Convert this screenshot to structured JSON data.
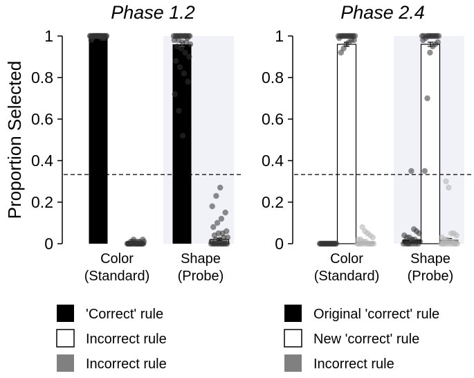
{
  "chart_data": [
    {
      "type": "bar",
      "title": "Phase 1.2",
      "ylabel": "Proportion Selected",
      "ylim": [
        0,
        1
      ],
      "yticks": [
        0,
        0.2,
        0.4,
        0.6,
        0.8,
        1
      ],
      "ytick_labels": [
        "0",
        "0.2",
        "0.4",
        "0.6",
        "0.8",
        "1"
      ],
      "chance_line": 0.333,
      "categories": [
        "Color (Standard)",
        "Shape (Probe)"
      ],
      "category_lines": [
        [
          "Color",
          "(Standard)"
        ],
        [
          "Shape",
          "(Probe)"
        ]
      ],
      "shaded_category": 1,
      "series": [
        {
          "legend_index": 0,
          "values": [
            1.0,
            0.96
          ],
          "errors": [
            0.0,
            0.01
          ]
        },
        {
          "legend_index": 1,
          "values": [
            0.0,
            0.02
          ],
          "errors": [
            0.0,
            0.005
          ]
        }
      ],
      "points": [
        {
          "category": 0,
          "series": 0,
          "values": [
            1,
            1,
            1,
            1,
            1,
            1,
            1,
            1,
            1,
            1,
            1,
            1,
            1,
            1,
            1,
            1,
            1,
            1,
            1,
            1,
            0.99,
            0.99,
            0.99,
            1,
            1,
            1,
            0.98,
            1,
            1,
            0.99
          ]
        },
        {
          "category": 0,
          "series": 1,
          "values": [
            0,
            0,
            0,
            0,
            0,
            0,
            0,
            0,
            0,
            0,
            0,
            0,
            0,
            0,
            0,
            0,
            0.01,
            0.01,
            0.01,
            0.01,
            0,
            0.02,
            0,
            0.02,
            0.01,
            0,
            0,
            0.01,
            0,
            0
          ]
        },
        {
          "category": 1,
          "series": 0,
          "values": [
            1,
            1,
            1,
            1,
            1,
            1,
            1,
            1,
            1,
            1,
            1,
            1,
            0.99,
            0.98,
            0.98,
            0.97,
            0.97,
            0.96,
            0.95,
            0.94,
            0.92,
            0.9,
            0.88,
            0.85,
            0.82,
            0.78,
            0.72,
            0.64,
            0.52,
            1
          ]
        },
        {
          "category": 1,
          "series": 1,
          "values": [
            0,
            0,
            0,
            0,
            0,
            0,
            0,
            0,
            0,
            0,
            0,
            0,
            0.01,
            0.01,
            0.02,
            0.02,
            0.03,
            0.03,
            0.04,
            0.05,
            0.05,
            0.06,
            0.08,
            0.1,
            0.12,
            0.15,
            0.18,
            0.23,
            0.27,
            0
          ]
        }
      ]
    },
    {
      "type": "bar",
      "title": "Phase 2.4",
      "ylabel": "",
      "ylim": [
        0,
        1
      ],
      "yticks": [
        0,
        0.2,
        0.4,
        0.6,
        0.8,
        1
      ],
      "ytick_labels": [
        "0",
        "0.2",
        "0.4",
        "0.6",
        "0.8",
        "1"
      ],
      "chance_line": 0.333,
      "categories": [
        "Color (Standard)",
        "Shape (Probe)"
      ],
      "category_lines": [
        [
          "Color",
          "(Standard)"
        ],
        [
          "Shape",
          "(Probe)"
        ]
      ],
      "shaded_category": 1,
      "series": [
        {
          "legend_index": 0,
          "values": [
            0.0,
            0.02
          ],
          "errors": [
            0.0,
            0.005
          ]
        },
        {
          "legend_index": 1,
          "values": [
            0.96,
            0.96
          ],
          "errors": [
            0.01,
            0.01
          ]
        },
        {
          "legend_index": 2,
          "values": [
            0.01,
            0.02
          ],
          "errors": [
            0.0,
            0.005
          ]
        }
      ],
      "points": [
        {
          "category": 0,
          "series": 0,
          "values": [
            0,
            0,
            0,
            0,
            0,
            0,
            0,
            0,
            0,
            0,
            0,
            0,
            0,
            0,
            0,
            0,
            0,
            0,
            0,
            0
          ]
        },
        {
          "category": 0,
          "series": 1,
          "values": [
            1,
            1,
            1,
            1,
            1,
            1,
            1,
            1,
            1,
            1,
            1,
            1,
            1,
            0.99,
            0.98,
            0.98,
            0.97,
            0.96,
            0.94,
            0.92
          ]
        },
        {
          "category": 0,
          "series": 2,
          "values": [
            0,
            0,
            0,
            0,
            0,
            0,
            0,
            0,
            0,
            0,
            0.01,
            0.01,
            0.02,
            0.02,
            0.03,
            0.04,
            0.05,
            0.06,
            0.08,
            0
          ]
        },
        {
          "category": 1,
          "series": 0,
          "values": [
            0,
            0,
            0,
            0,
            0,
            0,
            0.01,
            0.01,
            0.01,
            0.02,
            0.02,
            0.03,
            0.03,
            0.04,
            0.05,
            0.06,
            0.07,
            0.35,
            0,
            0
          ]
        },
        {
          "category": 1,
          "series": 1,
          "values": [
            1,
            1,
            1,
            1,
            1,
            1,
            1,
            1,
            1,
            1,
            1,
            1,
            0.99,
            0.98,
            0.97,
            0.96,
            0.95,
            0.92,
            0.7,
            0.35
          ]
        },
        {
          "category": 1,
          "series": 2,
          "values": [
            0,
            0,
            0,
            0,
            0,
            0,
            0,
            0,
            0,
            0.01,
            0.01,
            0.02,
            0.02,
            0.03,
            0.04,
            0.05,
            0.05,
            0.27,
            0.3,
            0
          ]
        }
      ]
    }
  ],
  "colors": {
    "black": "#000000",
    "white": "#ffffff",
    "gray": "#808080",
    "shade": "#f1f1f8",
    "dot_dark": "#333333",
    "dot_light": "#b5b5b5"
  },
  "legends": [
    {
      "items": [
        {
          "label": "'Correct' rule",
          "color": "#000000"
        },
        {
          "label": "Incorrect rule",
          "color": "#ffffff"
        },
        {
          "label": "Incorrect rule",
          "color": "#808080"
        }
      ]
    },
    {
      "items": [
        {
          "label": "Original 'correct' rule",
          "color": "#000000"
        },
        {
          "label": "New 'correct' rule",
          "color": "#ffffff"
        },
        {
          "label": "Incorrect rule",
          "color": "#808080"
        }
      ]
    }
  ]
}
